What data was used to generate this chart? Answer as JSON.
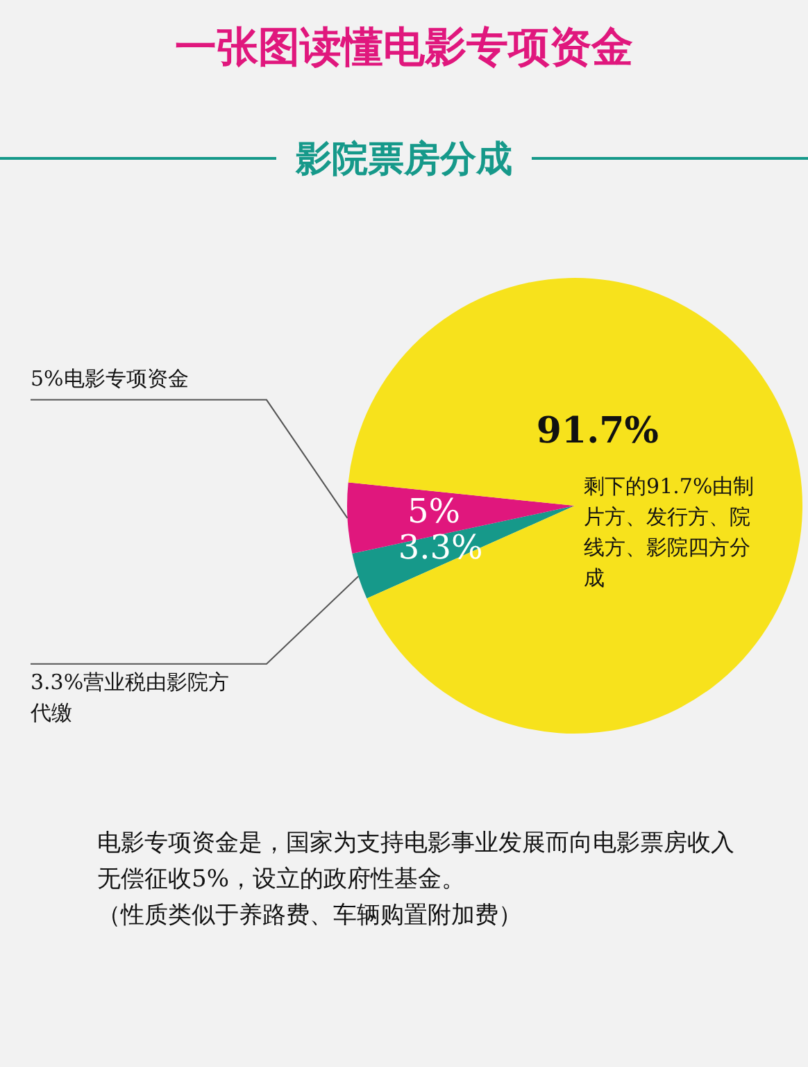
{
  "chart_data": {
    "type": "pie",
    "title": "一张图读懂电影专项资金",
    "subtitle": "影院票房分成",
    "categories": [
      "3.3%营业税由影院方代缴",
      "5%电影专项资金",
      "剩下的91.7%由制片方、发行方、院线方、影院四方分成"
    ],
    "values": [
      3.3,
      5,
      91.7
    ],
    "colors": [
      "#16998a",
      "#e0177d",
      "#f7e21c"
    ],
    "value_labels": [
      "3.3%",
      "5%",
      "91.7%"
    ],
    "legend": false,
    "annotations": [
      "电影专项资金是，国家为支持电影事业发展而向电影票房收入无偿征收5%，设立的政府性基金。",
      "（性质类似于养路费、车辆购置附加费）"
    ]
  }
}
